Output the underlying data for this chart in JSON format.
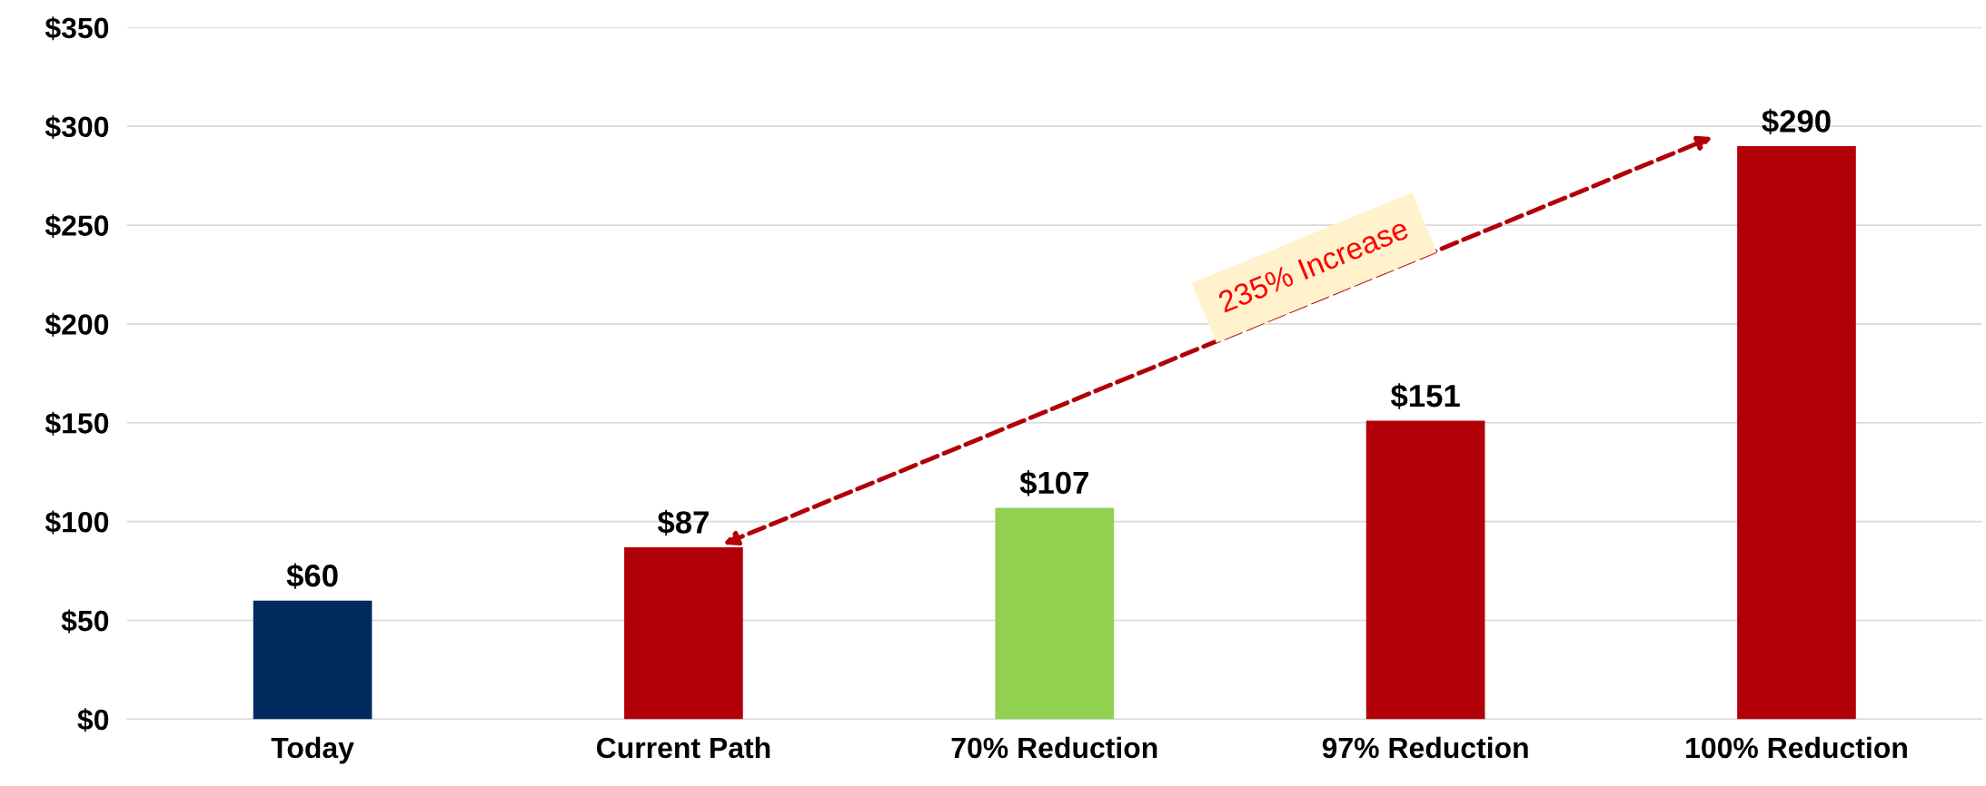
{
  "chart_data": {
    "type": "bar",
    "categories": [
      "Today",
      "Current Path",
      "70% Reduction",
      "97% Reduction",
      "100% Reduction"
    ],
    "values": [
      60,
      87,
      107,
      151,
      290
    ],
    "colors": [
      "#002b5c",
      "#b20008",
      "#92d050",
      "#b20008",
      "#b20008"
    ],
    "value_labels": [
      "$60",
      "$87",
      "$107",
      "$151",
      "$290"
    ],
    "ylim": [
      0,
      350
    ],
    "yticks": [
      {
        "value": 0,
        "label": "$0"
      },
      {
        "value": 50,
        "label": "$50"
      },
      {
        "value": 100,
        "label": "$100"
      },
      {
        "value": 150,
        "label": "$150"
      },
      {
        "value": 200,
        "label": "$200"
      },
      {
        "value": 250,
        "label": "$250"
      },
      {
        "value": 300,
        "label": "$300"
      },
      {
        "value": 350,
        "label": "$350"
      }
    ],
    "grid": "y",
    "annotations": [
      "235% Increase"
    ]
  }
}
